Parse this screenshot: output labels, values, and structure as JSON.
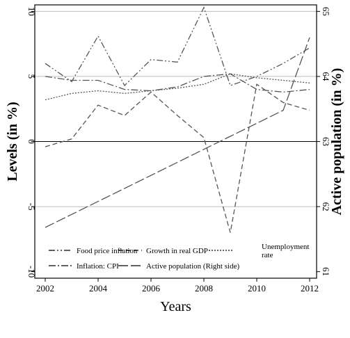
{
  "chart_data": {
    "type": "line",
    "title": "",
    "xlabel": "Years",
    "ylabel_left": "Levels (in %)",
    "ylabel_right": "Active population (in %)",
    "xlim": [
      2002,
      2012
    ],
    "ylim_left": [
      -10.5,
      10.5
    ],
    "ylim_right": [
      60.9,
      65.1
    ],
    "x_ticks": [
      2002,
      2004,
      2006,
      2008,
      2010,
      2012
    ],
    "y_ticks_left": [
      -10,
      -5,
      0,
      5,
      10
    ],
    "y_ticks_right": [
      61,
      62,
      63,
      64,
      65
    ],
    "y_tick_labels_left": [
      "-10",
      "-5",
      "0",
      "5",
      "10"
    ],
    "y_tick_labels_right": [
      "61",
      "62",
      "63",
      "64",
      "65"
    ],
    "gridlines_left": [
      10,
      5,
      0,
      -5
    ],
    "x": [
      2002,
      2003,
      2004,
      2005,
      2006,
      2007,
      2008,
      2009,
      2010,
      2011,
      2012
    ],
    "series": [
      {
        "name": "Food price inflation",
        "axis": "left",
        "style": "dash-dot-dot",
        "values": [
          6.0,
          4.6,
          8.1,
          4.3,
          6.3,
          6.1,
          10.3,
          4.3,
          5.0,
          6.0,
          7.2
        ]
      },
      {
        "name": "Growth in real GDP",
        "axis": "left",
        "style": "dash",
        "values": [
          -0.4,
          0.2,
          2.8,
          2.0,
          3.8,
          2.0,
          0.3,
          -7.0,
          4.4,
          3.0,
          2.4
        ]
      },
      {
        "name": "Unemployment rate",
        "axis": "left",
        "style": "dot",
        "values": [
          3.2,
          3.7,
          3.9,
          3.7,
          3.9,
          4.1,
          4.4,
          5.2,
          4.9,
          4.7,
          4.5
        ]
      },
      {
        "name": "Inflation: CPI",
        "axis": "left",
        "style": "dash-dot",
        "values": [
          5.0,
          4.7,
          4.7,
          4.0,
          3.9,
          4.2,
          5.0,
          5.2,
          4.0,
          3.8,
          4.0
        ]
      },
      {
        "name": "Active population (Right side)",
        "axis": "right",
        "style": "long-dash",
        "values": [
          61.68,
          61.88,
          62.08,
          62.28,
          62.48,
          62.68,
          62.88,
          63.08,
          63.28,
          63.48,
          64.6
        ]
      }
    ],
    "legend": {
      "position": "bottom",
      "items": [
        {
          "label": "Food price inflation",
          "style": "dash-dot-dot"
        },
        {
          "label": "Growth in real GDP",
          "style": "dash"
        },
        {
          "label_lines": [
            "Unemployment",
            "rate"
          ],
          "style": "dot"
        },
        {
          "label": "Inflation: CPI",
          "style": "dash-dot"
        },
        {
          "label": "Active population (Right side)",
          "style": "long-dash"
        }
      ]
    },
    "colors": {
      "series": "#555555",
      "grid": "#bdbdbd",
      "zero_line": "#000000",
      "legend_bg": "#ffffff"
    }
  }
}
